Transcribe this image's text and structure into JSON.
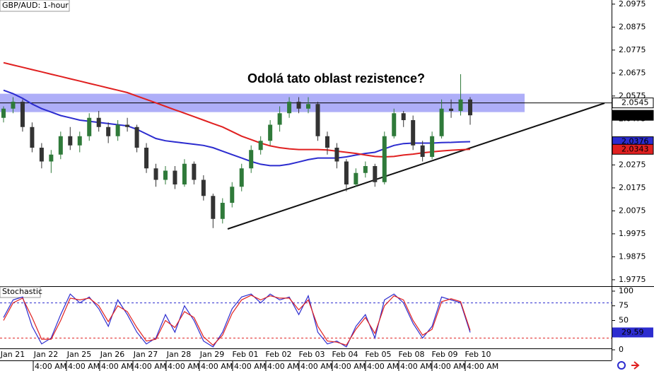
{
  "chart_data": {
    "type": "candlestick",
    "title": "GBP/AUD: 1-hour",
    "annotation": "Odolá tato oblast rezistence?",
    "x_labels": [
      "Jan 21",
      "Jan 22",
      "Jan 25",
      "Jan 26",
      "Jan 27",
      "Jan 28",
      "Jan 29",
      "Feb 01",
      "Feb 02",
      "Feb 03",
      "Feb 04",
      "Feb 05",
      "Feb 08",
      "Feb 09",
      "Feb 10"
    ],
    "time_labels": [
      "4:00 AM",
      "4:00 AM",
      "4:00 AM",
      "4:00 AM",
      "4:00 AM",
      "4:00 AM",
      "4:00 AM",
      "4:00 AM",
      "4:00 AM",
      "4:00 AM",
      "4:00 AM",
      "4:00 AM",
      "4:00 AM",
      "4:00 AM"
    ],
    "ylim": [
      1.9747,
      2.0993
    ],
    "yticks": [
      2.0975,
      2.0875,
      2.0775,
      2.0675,
      2.0575,
      2.0475,
      2.0375,
      2.0275,
      2.0175,
      2.0075,
      1.9975,
      1.9875,
      1.9775
    ],
    "candles": {
      "up_color": "#2f7a3a",
      "down_color": "#333333",
      "open": [
        2.048,
        2.052,
        2.055,
        2.044,
        2.035,
        2.029,
        2.032,
        2.04,
        2.036,
        2.04,
        2.048,
        2.044,
        2.04,
        2.045,
        2.044,
        2.035,
        2.026,
        2.021,
        2.025,
        2.019,
        2.028,
        2.021,
        2.014,
        2.004,
        2.011,
        2.018,
        2.026,
        2.034,
        2.038,
        2.045,
        2.05,
        2.055,
        2.052,
        2.054,
        2.04,
        2.035,
        2.029,
        2.019,
        2.024,
        2.027,
        2.02,
        2.04,
        2.05,
        2.047,
        2.036,
        2.031,
        2.04,
        2.052,
        2.051,
        2.056
      ],
      "high": [
        2.053,
        2.057,
        2.056,
        2.046,
        2.037,
        2.034,
        2.042,
        2.044,
        2.042,
        2.05,
        2.051,
        2.046,
        2.047,
        2.048,
        2.045,
        2.037,
        2.028,
        2.027,
        2.027,
        2.03,
        2.029,
        2.023,
        2.015,
        2.013,
        2.02,
        2.028,
        2.036,
        2.04,
        2.047,
        2.053,
        2.057,
        2.057,
        2.057,
        2.055,
        2.042,
        2.037,
        2.03,
        2.026,
        2.029,
        2.028,
        2.042,
        2.052,
        2.051,
        2.049,
        2.038,
        2.042,
        2.056,
        2.056,
        2.067,
        2.057
      ],
      "low": [
        2.046,
        2.05,
        2.042,
        2.033,
        2.026,
        2.024,
        2.03,
        2.034,
        2.033,
        2.038,
        2.042,
        2.037,
        2.038,
        2.042,
        2.033,
        2.024,
        2.018,
        2.019,
        2.017,
        2.018,
        2.019,
        2.012,
        2.0,
        2.002,
        2.009,
        2.016,
        2.024,
        2.032,
        2.036,
        2.042,
        2.048,
        2.05,
        2.05,
        2.038,
        2.032,
        2.026,
        2.016,
        2.018,
        2.022,
        2.018,
        2.019,
        2.039,
        2.044,
        2.034,
        2.029,
        2.03,
        2.039,
        2.048,
        2.049,
        2.045
      ],
      "close": [
        2.052,
        2.055,
        2.044,
        2.035,
        2.029,
        2.032,
        2.04,
        2.036,
        2.04,
        2.048,
        2.044,
        2.04,
        2.045,
        2.044,
        2.035,
        2.026,
        2.021,
        2.025,
        2.019,
        2.028,
        2.021,
        2.014,
        2.004,
        2.011,
        2.018,
        2.026,
        2.034,
        2.038,
        2.045,
        2.05,
        2.055,
        2.052,
        2.054,
        2.04,
        2.035,
        2.029,
        2.019,
        2.024,
        2.027,
        2.02,
        2.04,
        2.05,
        2.047,
        2.036,
        2.031,
        2.04,
        2.052,
        2.051,
        2.056,
        2.0491
      ]
    },
    "moving_averages": [
      {
        "color": "#2c2ccf",
        "values": [
          2.06,
          2.0585,
          2.0565,
          2.054,
          2.052,
          2.0505,
          2.049,
          2.048,
          2.047,
          2.0465,
          2.046,
          2.0455,
          2.045,
          2.0445,
          2.043,
          2.041,
          2.039,
          2.038,
          2.0375,
          2.037,
          2.0365,
          2.036,
          2.035,
          2.0335,
          2.032,
          2.0305,
          2.029,
          2.0278,
          2.0272,
          2.0272,
          2.0278,
          2.0288,
          2.0298,
          2.0305,
          2.0305,
          2.0305,
          2.031,
          2.0318,
          2.0325,
          2.033,
          2.0345,
          2.036,
          2.0368,
          2.037,
          2.037,
          2.037,
          2.0372,
          2.0373,
          2.0375,
          2.0376
        ]
      },
      {
        "color": "#e02020",
        "values": [
          2.072,
          2.071,
          2.07,
          2.069,
          2.068,
          2.067,
          2.066,
          2.065,
          2.064,
          2.063,
          2.062,
          2.061,
          2.06,
          2.059,
          2.0575,
          2.056,
          2.0545,
          2.053,
          2.0515,
          2.05,
          2.0485,
          2.047,
          2.0455,
          2.044,
          2.042,
          2.04,
          2.0385,
          2.037,
          2.0358,
          2.035,
          2.0345,
          2.0342,
          2.0342,
          2.0342,
          2.034,
          2.0335,
          2.033,
          2.0325,
          2.0318,
          2.0312,
          2.031,
          2.0312,
          2.0318,
          2.0322,
          2.0328,
          2.0332,
          2.0336,
          2.0339,
          2.0341,
          2.0343
        ]
      }
    ],
    "resistance_zone": [
      2.0505,
      2.0585
    ],
    "zone_color": "#8c8cf5",
    "resistance_line": 2.0545,
    "price_labels": [
      {
        "value": 2.0545,
        "background": "#ffffff",
        "text_color": "#000000"
      },
      {
        "value": 2.0491,
        "background": "#000000",
        "text_color": "#ffffff"
      },
      {
        "value": 2.0376,
        "background": "#2c2ccf",
        "text_color": "#ffffff"
      },
      {
        "value": 2.0343,
        "background": "#e02020",
        "text_color": "#ffffff"
      }
    ],
    "indicator": {
      "type": "line",
      "title": "Stochastic",
      "ylim": [
        -6,
        108.4
      ],
      "yticks": [
        100,
        75,
        50,
        25,
        0
      ],
      "levels": [
        {
          "value": 80,
          "color": "#2c2ccf"
        },
        {
          "value": 20,
          "color": "#e02020"
        }
      ],
      "series": [
        {
          "color": "#2c2ccf",
          "values": [
            55,
            85,
            90,
            40,
            10,
            20,
            60,
            95,
            80,
            90,
            70,
            40,
            85,
            60,
            30,
            10,
            20,
            60,
            30,
            75,
            50,
            15,
            5,
            30,
            70,
            90,
            95,
            80,
            95,
            85,
            90,
            60,
            92,
            30,
            10,
            15,
            5,
            40,
            60,
            20,
            85,
            95,
            80,
            45,
            20,
            40,
            90,
            85,
            80,
            29.59
          ]
        },
        {
          "color": "#e02020",
          "values": [
            50,
            80,
            88,
            55,
            18,
            18,
            50,
            88,
            85,
            88,
            75,
            48,
            75,
            65,
            38,
            15,
            18,
            50,
            38,
            65,
            55,
            22,
            8,
            25,
            62,
            85,
            93,
            85,
            92,
            88,
            88,
            68,
            85,
            40,
            15,
            13,
            8,
            35,
            55,
            28,
            75,
            92,
            85,
            50,
            25,
            35,
            82,
            87,
            82,
            33
          ]
        }
      ],
      "value_label": {
        "value": 29.59,
        "background": "#2c2ccf",
        "text_color": "#ffffff"
      }
    }
  }
}
